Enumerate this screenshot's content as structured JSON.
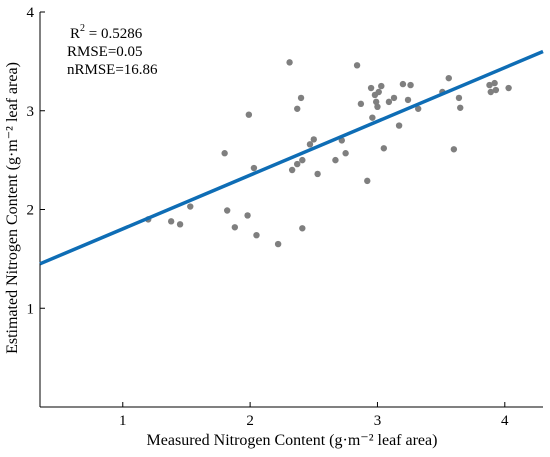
{
  "chart_data": {
    "type": "scatter",
    "xlabel": "Measured Nitrogen Content (g·m⁻² leaf area)",
    "ylabel": "Estimated Nitrogen Content (g·m⁻² leaf area)",
    "xlim": [
      0.35,
      4.3
    ],
    "ylim": [
      0.0,
      4.0
    ],
    "x_ticks": [
      "1",
      "2",
      "3",
      "4"
    ],
    "y_ticks": [
      "1",
      "2",
      "3",
      "4"
    ],
    "grid": false,
    "annotations": {
      "r2_base": "R",
      "r2_exp": "2",
      "r2_value": " = 0.5286",
      "rmse": "RMSE=0.05",
      "nrmse": "nRMSE=16.86"
    },
    "point_color": "#7f7f7f",
    "line_color": "#0e6db5",
    "fit_line": {
      "x": [
        0.35,
        4.3
      ],
      "y": [
        1.45,
        3.6
      ]
    },
    "points": [
      [
        1.2,
        1.9
      ],
      [
        1.38,
        1.88
      ],
      [
        1.45,
        1.85
      ],
      [
        1.53,
        2.03
      ],
      [
        1.8,
        2.57
      ],
      [
        1.82,
        1.99
      ],
      [
        1.88,
        1.82
      ],
      [
        1.98,
        1.94
      ],
      [
        1.99,
        2.96
      ],
      [
        2.03,
        2.42
      ],
      [
        2.05,
        1.74
      ],
      [
        2.22,
        1.65
      ],
      [
        2.31,
        3.49
      ],
      [
        2.33,
        2.4
      ],
      [
        2.37,
        3.02
      ],
      [
        2.37,
        2.46
      ],
      [
        2.4,
        3.13
      ],
      [
        2.41,
        2.5
      ],
      [
        2.41,
        1.81
      ],
      [
        2.47,
        2.66
      ],
      [
        2.5,
        2.71
      ],
      [
        2.53,
        2.36
      ],
      [
        2.67,
        2.5
      ],
      [
        2.72,
        2.7
      ],
      [
        2.75,
        2.57
      ],
      [
        2.84,
        3.46
      ],
      [
        2.87,
        3.07
      ],
      [
        2.92,
        2.29
      ],
      [
        2.95,
        3.23
      ],
      [
        2.96,
        2.93
      ],
      [
        2.98,
        3.16
      ],
      [
        2.99,
        3.09
      ],
      [
        3.0,
        3.04
      ],
      [
        3.01,
        3.19
      ],
      [
        3.03,
        3.25
      ],
      [
        3.05,
        2.62
      ],
      [
        3.09,
        3.09
      ],
      [
        3.13,
        3.13
      ],
      [
        3.17,
        2.85
      ],
      [
        3.2,
        3.27
      ],
      [
        3.24,
        3.11
      ],
      [
        3.26,
        3.26
      ],
      [
        3.32,
        3.02
      ],
      [
        3.51,
        3.19
      ],
      [
        3.56,
        3.33
      ],
      [
        3.6,
        2.61
      ],
      [
        3.64,
        3.13
      ],
      [
        3.65,
        3.03
      ],
      [
        3.88,
        3.26
      ],
      [
        3.89,
        3.19
      ],
      [
        3.92,
        3.28
      ],
      [
        3.93,
        3.21
      ],
      [
        4.03,
        3.23
      ]
    ]
  }
}
